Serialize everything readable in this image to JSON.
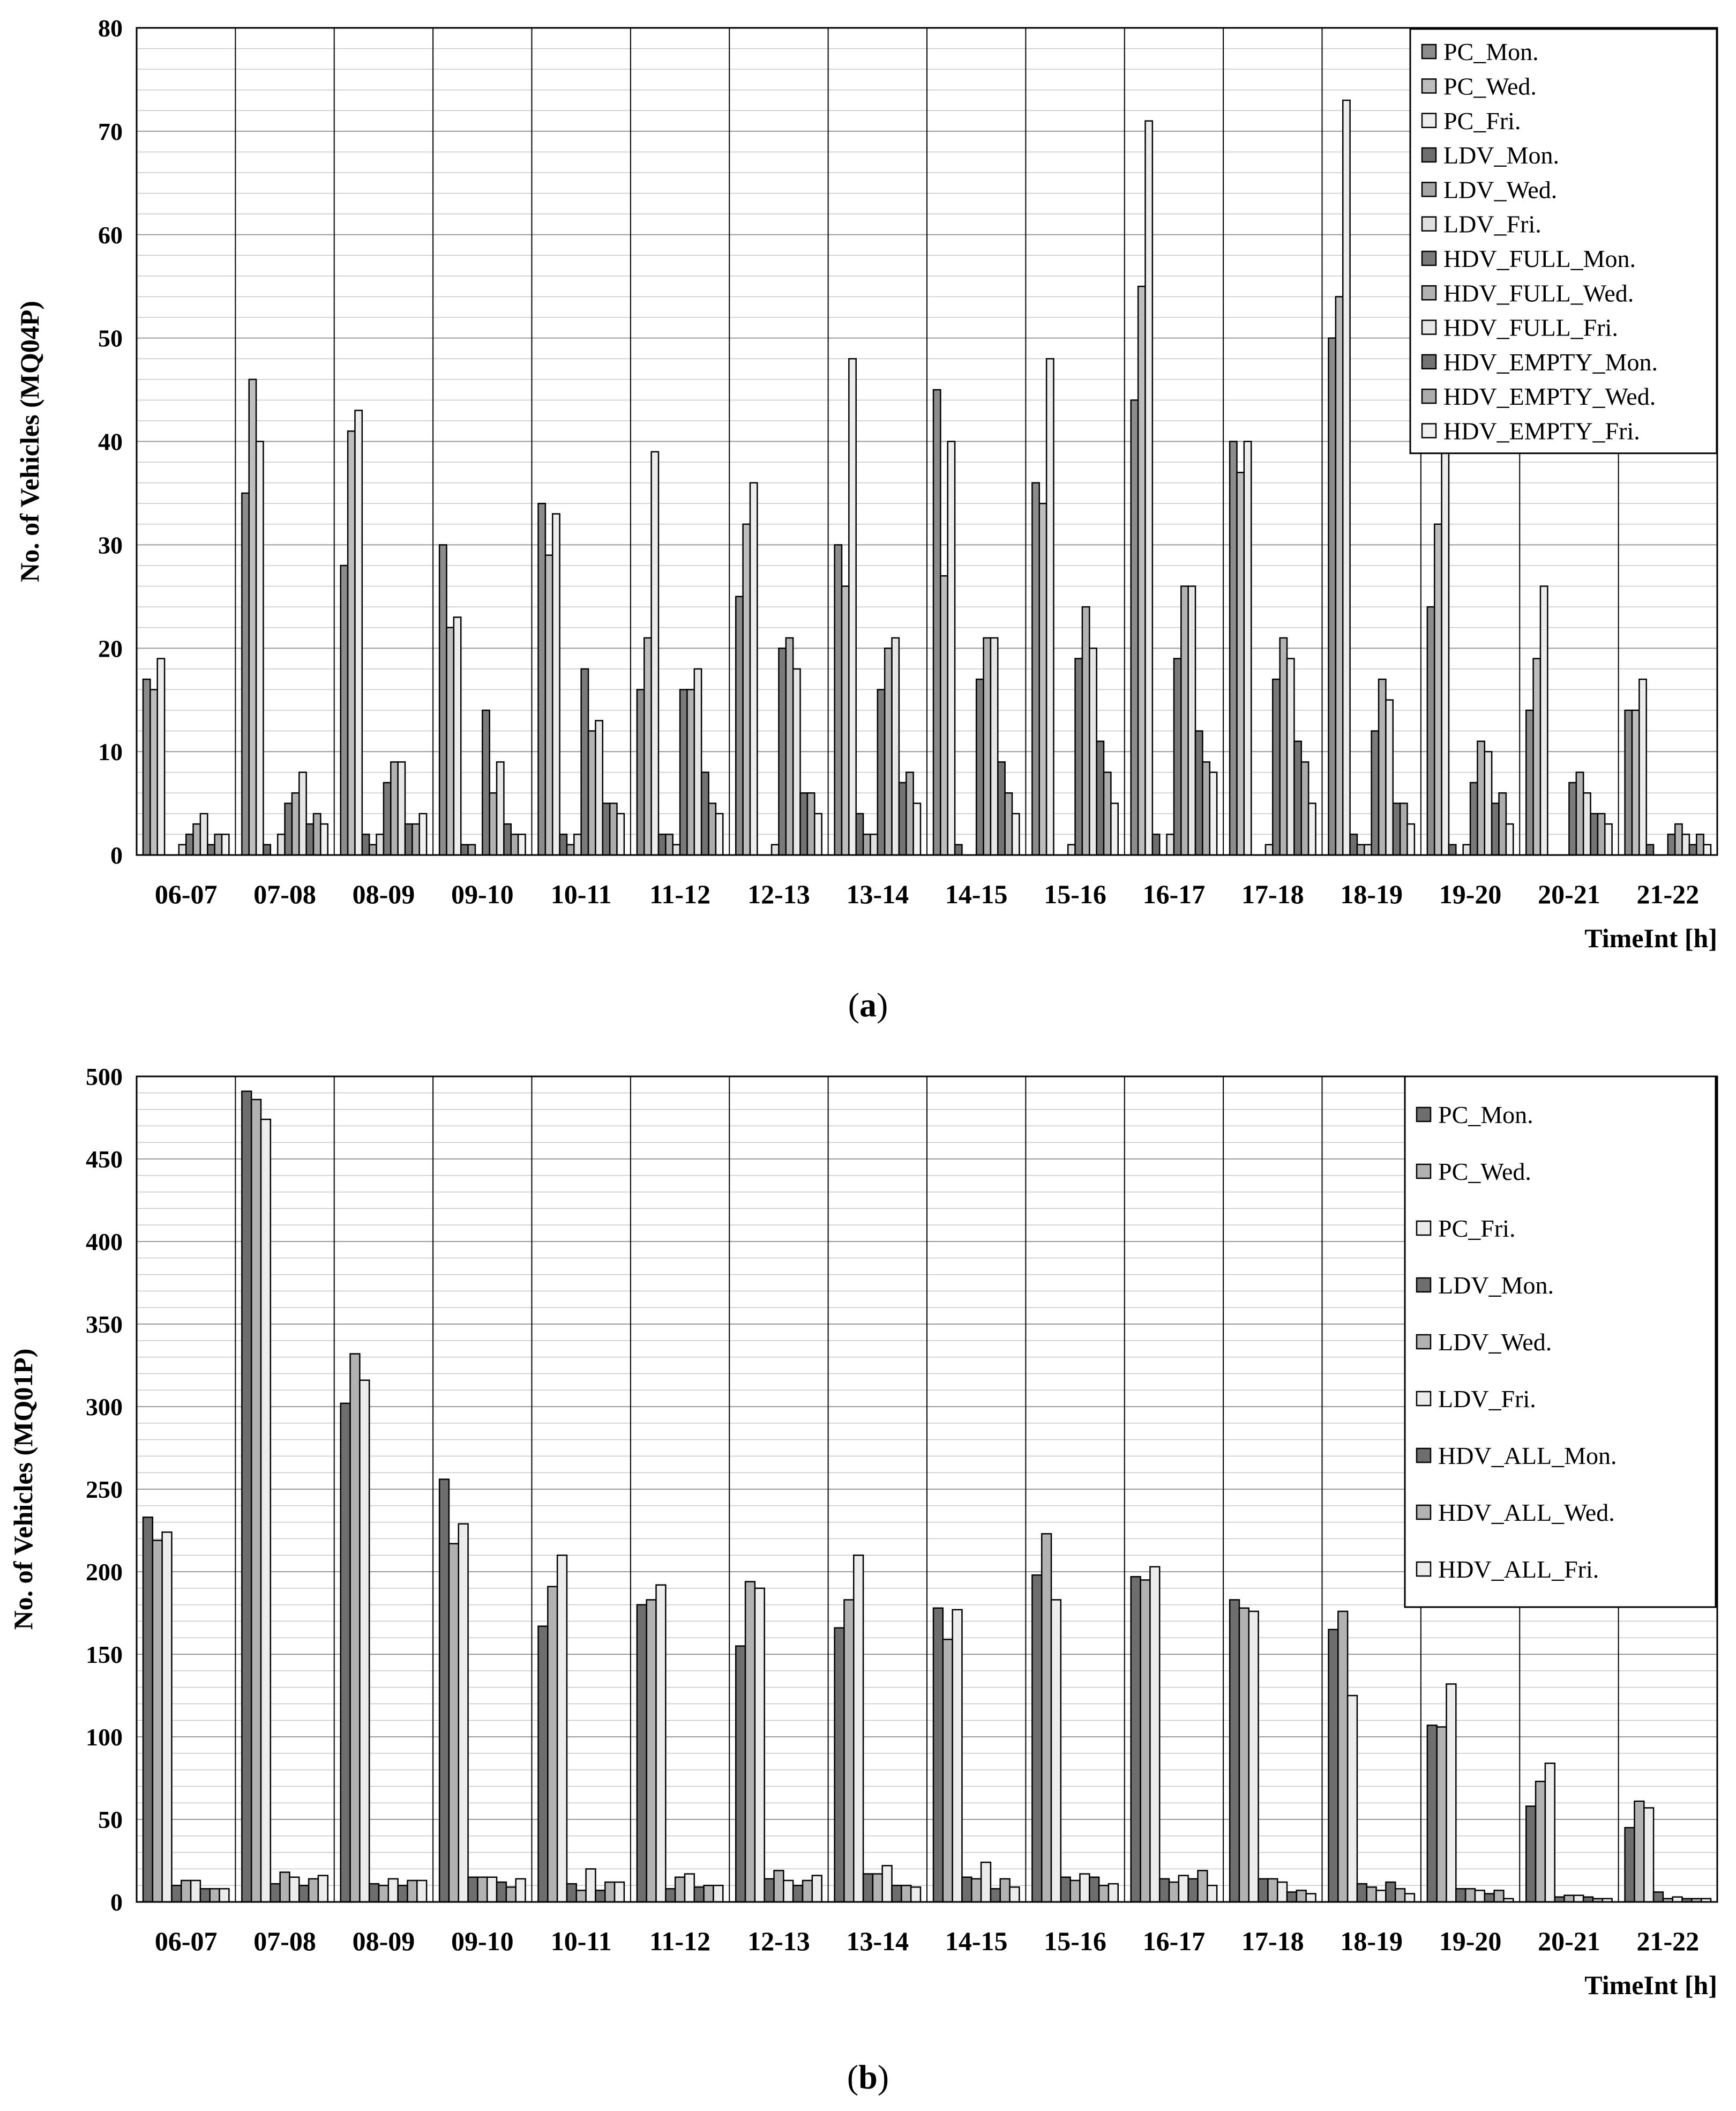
{
  "figure": {
    "caption_a_open": "(",
    "caption_a_letter": "a",
    "caption_a_close": ")",
    "caption_b_open": "(",
    "caption_b_letter": "b",
    "caption_b_close": ")"
  },
  "chart_data": [
    {
      "type": "bar",
      "panel": "a",
      "ylabel": "No. of Vehicles (MQ04P)",
      "xlabel": "TimeInt [h]",
      "ylim": [
        0,
        80
      ],
      "yticks": [
        0,
        10,
        20,
        30,
        40,
        50,
        60,
        70,
        80
      ],
      "ytick_labels": [
        "0",
        "10",
        "20",
        "30",
        "40",
        "50",
        "60",
        "70",
        "80"
      ],
      "minor_step": 2,
      "legend_position": "top-right",
      "categories": [
        "06-07",
        "07-08",
        "08-09",
        "09-10",
        "10-11",
        "11-12",
        "12-13",
        "13-14",
        "14-15",
        "15-16",
        "16-17",
        "17-18",
        "18-19",
        "19-20",
        "20-21",
        "21-22"
      ],
      "series": [
        {
          "name": "PC_Mon.",
          "color": "#8c8c8c",
          "values": [
            17,
            35,
            28,
            30,
            34,
            16,
            25,
            30,
            45,
            36,
            44,
            40,
            50,
            24,
            14,
            14
          ]
        },
        {
          "name": "PC_Wed.",
          "color": "#bdbdbd",
          "values": [
            16,
            46,
            41,
            22,
            29,
            21,
            32,
            26,
            27,
            34,
            55,
            37,
            54,
            32,
            19,
            14
          ]
        },
        {
          "name": "PC_Fri.",
          "color": "#ececec",
          "values": [
            19,
            40,
            43,
            23,
            33,
            39,
            36,
            48,
            40,
            48,
            71,
            40,
            73,
            39,
            26,
            17
          ]
        },
        {
          "name": "LDV_Mon.",
          "color": "#6e6e6e",
          "values": [
            0,
            1,
            2,
            1,
            2,
            2,
            0,
            4,
            1,
            0,
            2,
            0,
            2,
            1,
            0,
            1
          ]
        },
        {
          "name": "LDV_Wed.",
          "color": "#a6a6a6",
          "values": [
            0,
            0,
            1,
            1,
            1,
            2,
            0,
            2,
            0,
            0,
            0,
            0,
            1,
            0,
            0,
            0
          ]
        },
        {
          "name": "LDV_Fri.",
          "color": "#e0e0e0",
          "values": [
            1,
            2,
            2,
            0,
            2,
            1,
            1,
            2,
            0,
            1,
            2,
            1,
            1,
            1,
            0,
            0
          ]
        },
        {
          "name": "HDV_FULL_Mon.",
          "color": "#7a7a7a",
          "values": [
            2,
            5,
            7,
            14,
            18,
            16,
            20,
            16,
            17,
            19,
            19,
            17,
            12,
            7,
            7,
            2
          ]
        },
        {
          "name": "HDV_FULL_Wed.",
          "color": "#b2b2b2",
          "values": [
            3,
            6,
            9,
            6,
            12,
            16,
            21,
            20,
            21,
            24,
            26,
            21,
            17,
            11,
            8,
            3
          ]
        },
        {
          "name": "HDV_FULL_Fri.",
          "color": "#e6e6e6",
          "values": [
            4,
            8,
            9,
            9,
            13,
            18,
            18,
            21,
            21,
            20,
            26,
            19,
            15,
            10,
            6,
            2
          ]
        },
        {
          "name": "HDV_EMPTY_Mon.",
          "color": "#737373",
          "values": [
            1,
            3,
            3,
            3,
            5,
            8,
            6,
            7,
            9,
            11,
            12,
            11,
            5,
            5,
            4,
            1
          ]
        },
        {
          "name": "HDV_EMPTY_Wed.",
          "color": "#acacac",
          "values": [
            2,
            4,
            3,
            2,
            5,
            5,
            6,
            8,
            6,
            8,
            9,
            9,
            5,
            6,
            4,
            2
          ]
        },
        {
          "name": "HDV_EMPTY_Fri.",
          "color": "#f0f0f0",
          "values": [
            2,
            3,
            4,
            2,
            4,
            4,
            4,
            5,
            4,
            5,
            8,
            5,
            3,
            3,
            3,
            1
          ]
        }
      ]
    },
    {
      "type": "bar",
      "panel": "b",
      "ylabel": "No. of Vehicles (MQ01P)",
      "xlabel": "TimeInt [h]",
      "ylim": [
        0,
        500
      ],
      "yticks": [
        0,
        50,
        100,
        150,
        200,
        250,
        300,
        350,
        400,
        450,
        500
      ],
      "ytick_labels": [
        "0",
        "50",
        "100",
        "150",
        "200",
        "250",
        "300",
        "350",
        "400",
        "450",
        "500"
      ],
      "minor_step": 10,
      "legend_position": "top-right",
      "categories": [
        "06-07",
        "07-08",
        "08-09",
        "09-10",
        "10-11",
        "11-12",
        "12-13",
        "13-14",
        "14-15",
        "15-16",
        "16-17",
        "17-18",
        "18-19",
        "19-20",
        "20-21",
        "21-22"
      ],
      "series": [
        {
          "name": "PC_Mon.",
          "color": "#6e6e6e",
          "values": [
            233,
            491,
            302,
            256,
            167,
            180,
            155,
            166,
            178,
            198,
            197,
            183,
            165,
            107,
            58,
            45
          ]
        },
        {
          "name": "PC_Wed.",
          "color": "#b2b2b2",
          "values": [
            219,
            486,
            332,
            217,
            191,
            183,
            194,
            183,
            159,
            223,
            195,
            178,
            176,
            106,
            73,
            61
          ]
        },
        {
          "name": "PC_Fri.",
          "color": "#ececec",
          "values": [
            224,
            474,
            316,
            229,
            210,
            192,
            190,
            210,
            177,
            183,
            203,
            176,
            125,
            132,
            84,
            57
          ]
        },
        {
          "name": "LDV_Mon.",
          "color": "#6e6e6e",
          "values": [
            10,
            11,
            11,
            15,
            11,
            8,
            14,
            17,
            15,
            15,
            14,
            14,
            11,
            8,
            3,
            6
          ]
        },
        {
          "name": "LDV_Wed.",
          "color": "#b2b2b2",
          "values": [
            13,
            18,
            10,
            15,
            7,
            15,
            19,
            17,
            14,
            13,
            12,
            14,
            9,
            8,
            4,
            2
          ]
        },
        {
          "name": "LDV_Fri.",
          "color": "#ececec",
          "values": [
            13,
            15,
            14,
            15,
            20,
            17,
            13,
            22,
            24,
            17,
            16,
            12,
            7,
            7,
            4,
            3
          ]
        },
        {
          "name": "HDV_ALL_Mon.",
          "color": "#6e6e6e",
          "values": [
            8,
            10,
            10,
            12,
            7,
            9,
            10,
            10,
            8,
            15,
            14,
            6,
            12,
            5,
            3,
            2
          ]
        },
        {
          "name": "HDV_ALL_Wed.",
          "color": "#b2b2b2",
          "values": [
            8,
            14,
            13,
            9,
            12,
            10,
            13,
            10,
            14,
            10,
            19,
            7,
            8,
            7,
            2,
            2
          ]
        },
        {
          "name": "HDV_ALL_Fri.",
          "color": "#ececec",
          "values": [
            8,
            16,
            13,
            14,
            12,
            10,
            16,
            9,
            9,
            11,
            10,
            5,
            5,
            2,
            2,
            2
          ]
        }
      ]
    }
  ]
}
